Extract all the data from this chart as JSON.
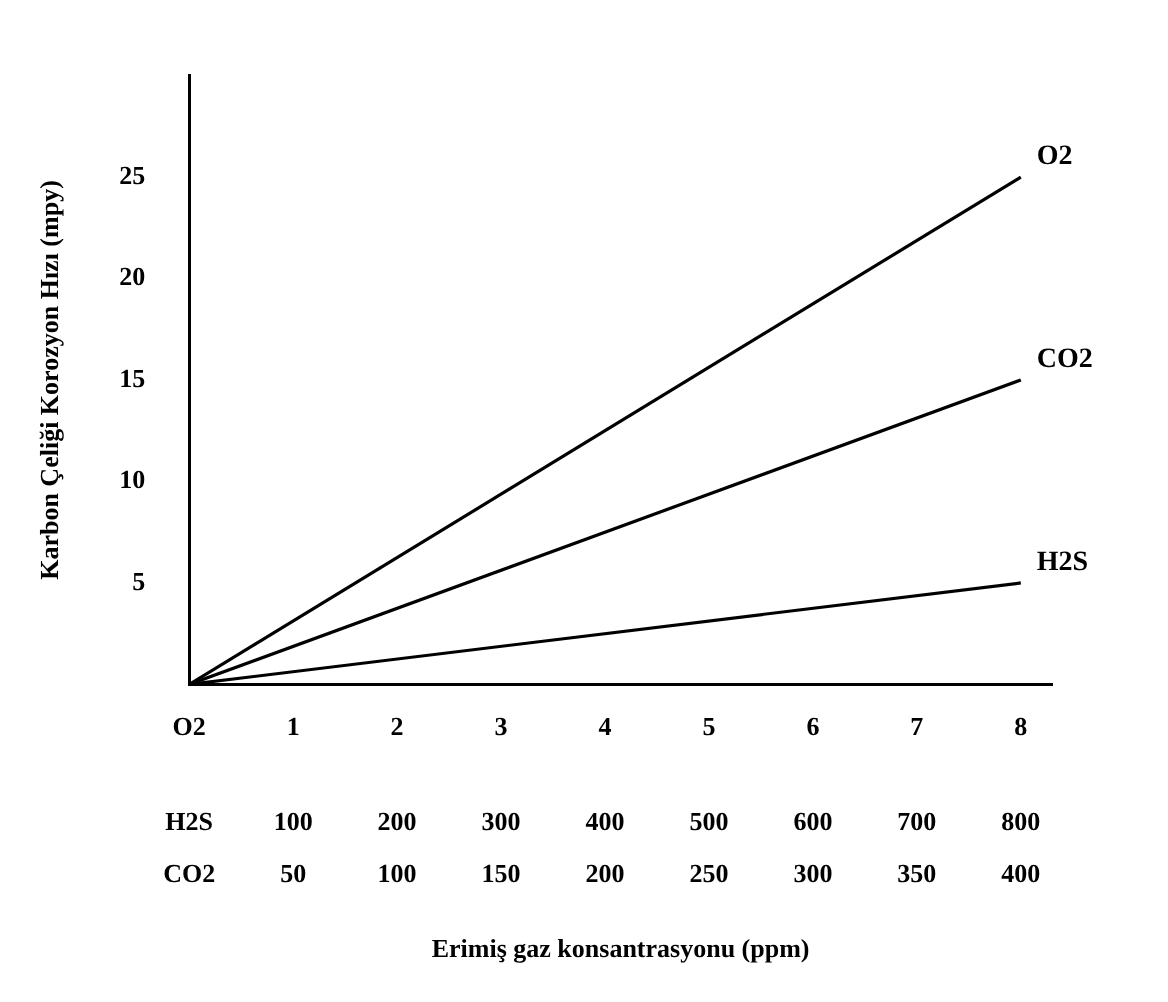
{
  "chart_data": {
    "type": "line",
    "xlabel": "Erimiş gaz konsantrasyonu (ppm)",
    "ylabel": "Karbon Çeliği Korozyon Hızı (mpy)",
    "x": [
      0,
      8
    ],
    "series": [
      {
        "name": "O2",
        "color": "#000000",
        "values": [
          0,
          25
        ]
      },
      {
        "name": "CO2",
        "color": "#000000",
        "values": [
          0,
          15
        ]
      },
      {
        "name": "H2S",
        "color": "#000000",
        "values": [
          0,
          5
        ]
      }
    ],
    "xlim": [
      0,
      8.3
    ],
    "xticks": [
      {
        "value": 0,
        "label": "O2"
      },
      1,
      2,
      3,
      4,
      5,
      6,
      7,
      8
    ],
    "x2lim": [
      0,
      830
    ],
    "x2ticks": [
      {
        "value": 0,
        "label": "H2S"
      },
      100,
      200,
      300,
      400,
      500,
      600,
      700,
      800
    ],
    "annotations": [
      "CO2",
      "50",
      "100",
      "150",
      "200",
      "250",
      "300",
      "350",
      "400"
    ],
    "ylim": [
      0,
      30
    ],
    "yticks": [
      5,
      10,
      15,
      20,
      25
    ],
    "grid": false,
    "legend": false,
    "marker": "none",
    "line_style": "solid"
  }
}
